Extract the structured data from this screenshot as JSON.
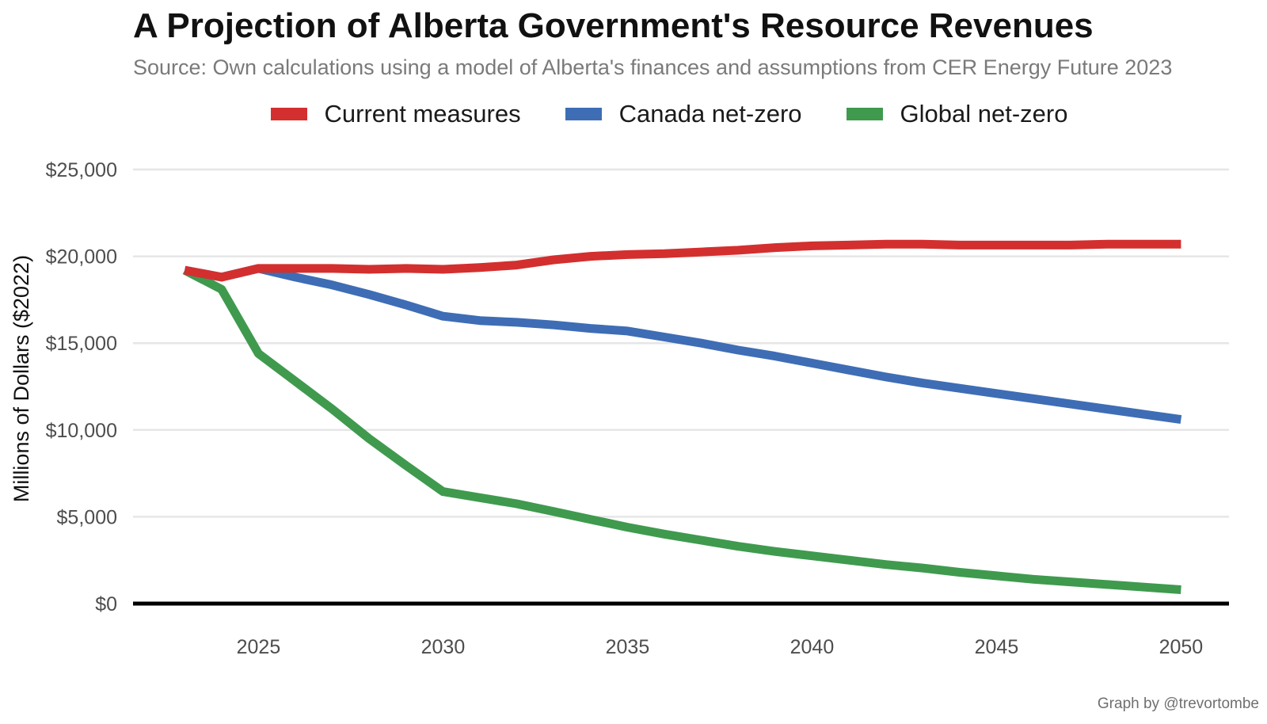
{
  "title": "A Projection of Alberta Government's Resource Revenues",
  "subtitle": "Source: Own calculations using a model of Alberta's finances and assumptions from CER Energy Future 2023",
  "credit": "Graph by @trevortombe",
  "chart_data": {
    "type": "line",
    "title": "A Projection of Alberta Government's Resource Revenues",
    "subtitle": "Source: Own calculations using a model of Alberta's finances and assumptions from CER Energy Future 2023",
    "xlabel": "",
    "ylabel": "Millions of Dollars ($2022)",
    "x": [
      2023,
      2024,
      2025,
      2026,
      2027,
      2028,
      2029,
      2030,
      2031,
      2032,
      2033,
      2034,
      2035,
      2036,
      2037,
      2038,
      2039,
      2040,
      2041,
      2042,
      2043,
      2044,
      2045,
      2046,
      2047,
      2048,
      2049,
      2050
    ],
    "xlim": [
      2021.6,
      2051.3
    ],
    "ylim": [
      0,
      25000
    ],
    "x_ticks": [
      2025,
      2030,
      2035,
      2040,
      2045,
      2050
    ],
    "x_tick_labels": [
      "2025",
      "2030",
      "2035",
      "2040",
      "2045",
      "2050"
    ],
    "y_ticks": [
      0,
      5000,
      10000,
      15000,
      20000,
      25000
    ],
    "y_tick_labels": [
      "$0",
      "$5,000",
      "$10,000",
      "$15,000",
      "$20,000",
      "$25,000"
    ],
    "grid": true,
    "legend_position": "top",
    "series": [
      {
        "name": "Current measures",
        "color": "#d32f2f",
        "values": [
          19200,
          18800,
          19300,
          19300,
          19300,
          19250,
          19300,
          19250,
          19350,
          19500,
          19800,
          20000,
          20100,
          20150,
          20250,
          20350,
          20500,
          20600,
          20650,
          20700,
          20700,
          20650,
          20650,
          20650,
          20650,
          20700,
          20700,
          20700
        ]
      },
      {
        "name": "Canada net-zero",
        "color": "#3e6db5",
        "values": [
          19200,
          18800,
          19300,
          18800,
          18350,
          17800,
          17200,
          16550,
          16300,
          16200,
          16050,
          15850,
          15700,
          15350,
          15000,
          14600,
          14250,
          13850,
          13450,
          13050,
          12700,
          12400,
          12100,
          11800,
          11500,
          11200,
          10900,
          10600
        ]
      },
      {
        "name": "Global net-zero",
        "color": "#3f9a4e",
        "values": [
          19200,
          18100,
          14400,
          12800,
          11200,
          9500,
          7950,
          6450,
          6100,
          5750,
          5300,
          4850,
          4400,
          4000,
          3650,
          3300,
          3000,
          2750,
          2500,
          2250,
          2050,
          1800,
          1600,
          1400,
          1250,
          1100,
          950,
          800
        ]
      }
    ]
  }
}
